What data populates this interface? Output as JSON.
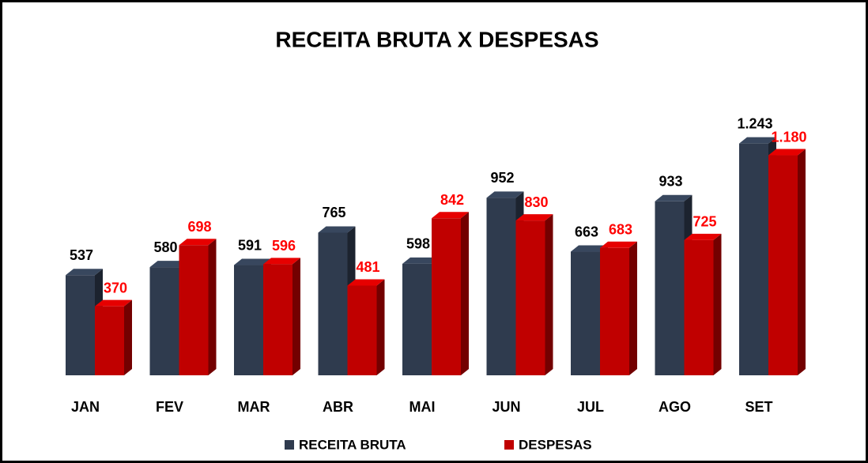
{
  "chart_data": {
    "type": "bar3d",
    "title": "RECEITA BRUTA X DESPESAS",
    "categories": [
      "JAN",
      "FEV",
      "MAR",
      "ABR",
      "MAI",
      "JUN",
      "JUL",
      "AGO",
      "SET"
    ],
    "series": [
      {
        "name": "RECEITA BRUTA",
        "color": "#2f3b4e",
        "label_color": "#000000",
        "values": [
          537,
          580,
          591,
          765,
          598,
          952,
          663,
          933,
          1243
        ],
        "value_labels": [
          "537",
          "580",
          "591",
          "765",
          "598",
          "952",
          "663",
          "933",
          "1.243"
        ]
      },
      {
        "name": "DESPESAS",
        "color": "#c00000",
        "label_color": "#ff0000",
        "values": [
          370,
          698,
          596,
          481,
          842,
          830,
          683,
          725,
          1180
        ],
        "value_labels": [
          "370",
          "698",
          "596",
          "481",
          "842",
          "830",
          "683",
          "725",
          "1.180"
        ]
      }
    ],
    "legend": "bottom"
  }
}
